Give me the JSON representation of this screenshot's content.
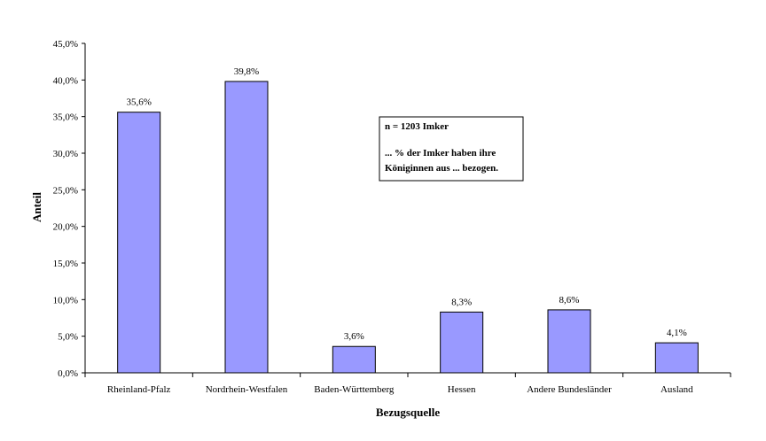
{
  "chart_data": {
    "type": "bar",
    "categories": [
      "Rheinland-Pfalz",
      "Nordrhein-Westfalen",
      "Baden-Württemberg",
      "Hessen",
      "Andere Bundesländer",
      "Ausland"
    ],
    "values": [
      35.6,
      39.8,
      3.6,
      8.3,
      8.6,
      4.1
    ],
    "value_labels": [
      "35,6%",
      "39,8%",
      "3,6%",
      "8,3%",
      "8,6%",
      "4,1%"
    ],
    "xlabel": "Bezugsquelle",
    "ylabel": "Anteil",
    "ylim": [
      0,
      45
    ],
    "yticks": [
      0,
      5,
      10,
      15,
      20,
      25,
      30,
      35,
      40,
      45
    ],
    "ytick_labels": [
      "0,0%",
      "5,0%",
      "10,0%",
      "15,0%",
      "20,0%",
      "25,0%",
      "30,0%",
      "35,0%",
      "40,0%",
      "45,0%"
    ],
    "grid": false,
    "bar_color": "#9999FF",
    "annotation": {
      "line1": "n = 1203 Imker",
      "line2": "... % der Imker haben ihre",
      "line3": "Königinnen aus ... bezogen."
    }
  }
}
